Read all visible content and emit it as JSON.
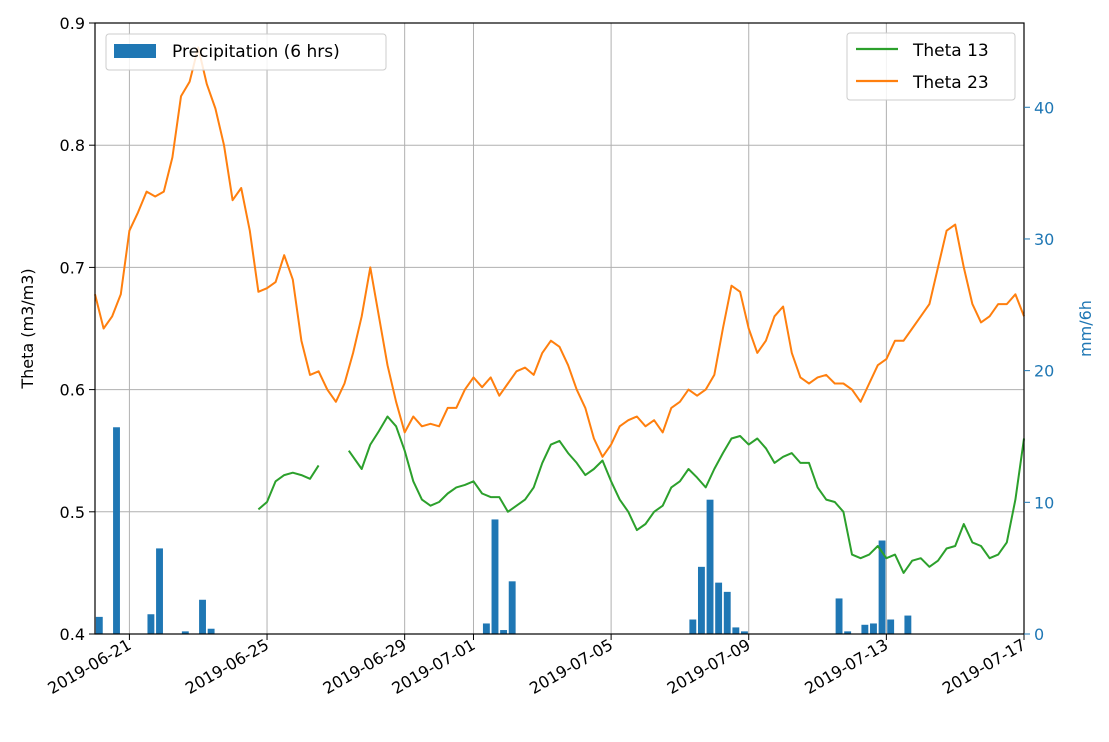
{
  "chart_data": {
    "type": "line",
    "xlabel": "",
    "ylabel": "Theta (m3/m3)",
    "y2label": "mm/6h",
    "xlim": [
      "2019-06-20",
      "2019-07-17"
    ],
    "ylim": [
      0.4,
      0.9
    ],
    "y2lim": [
      0,
      46.4
    ],
    "grid": true,
    "x_ticks": [
      "2019-06-21",
      "2019-06-25",
      "2019-06-29",
      "2019-07-01",
      "2019-07-05",
      "2019-07-09",
      "2019-07-13",
      "2019-07-17"
    ],
    "y_ticks": [
      "0.4",
      "0.5",
      "0.6",
      "0.7",
      "0.8",
      "0.9"
    ],
    "y2_ticks": [
      "0",
      "10",
      "20",
      "30",
      "40"
    ],
    "legend_left": {
      "placement": "upper-left",
      "entries": [
        "Precipitation (6 hrs)"
      ]
    },
    "legend_right": {
      "placement": "upper-right",
      "entries": [
        "Theta 13",
        "Theta 23"
      ]
    },
    "colors": {
      "precip": "#1f77b4",
      "theta13": "#2ca02c",
      "theta23": "#ff7f0e",
      "axis2": "#1f77b4"
    },
    "precipitation": [
      {
        "date": "2019-06-20T03:00",
        "value": 1.3
      },
      {
        "date": "2019-06-20T15:00",
        "value": 15.7
      },
      {
        "date": "2019-06-21T15:00",
        "value": 1.5
      },
      {
        "date": "2019-06-21T21:00",
        "value": 6.5
      },
      {
        "date": "2019-06-22T15:00",
        "value": 0.2
      },
      {
        "date": "2019-06-23T03:00",
        "value": 2.6
      },
      {
        "date": "2019-06-23T09:00",
        "value": 0.4
      },
      {
        "date": "2019-07-01T09:00",
        "value": 0.8
      },
      {
        "date": "2019-07-01T15:00",
        "value": 8.7
      },
      {
        "date": "2019-07-01T21:00",
        "value": 0.3
      },
      {
        "date": "2019-07-02T03:00",
        "value": 4.0
      },
      {
        "date": "2019-07-07T09:00",
        "value": 1.1
      },
      {
        "date": "2019-07-07T15:00",
        "value": 5.1
      },
      {
        "date": "2019-07-07T21:00",
        "value": 10.2
      },
      {
        "date": "2019-07-08T03:00",
        "value": 3.9
      },
      {
        "date": "2019-07-08T09:00",
        "value": 3.2
      },
      {
        "date": "2019-07-08T15:00",
        "value": 0.5
      },
      {
        "date": "2019-07-08T21:00",
        "value": 0.2
      },
      {
        "date": "2019-07-11T15:00",
        "value": 2.7
      },
      {
        "date": "2019-07-11T21:00",
        "value": 0.2
      },
      {
        "date": "2019-07-12T09:00",
        "value": 0.7
      },
      {
        "date": "2019-07-12T15:00",
        "value": 0.8
      },
      {
        "date": "2019-07-12T21:00",
        "value": 7.1
      },
      {
        "date": "2019-07-13T03:00",
        "value": 1.1
      },
      {
        "date": "2019-07-13T15:00",
        "value": 1.4
      }
    ],
    "series": [
      {
        "name": "Theta 23",
        "points": [
          [
            "2019-06-20T00:00",
            0.678
          ],
          [
            "2019-06-20T06:00",
            0.65
          ],
          [
            "2019-06-20T12:00",
            0.66
          ],
          [
            "2019-06-20T18:00",
            0.678
          ],
          [
            "2019-06-21T00:00",
            0.73
          ],
          [
            "2019-06-21T06:00",
            0.745
          ],
          [
            "2019-06-21T12:00",
            0.762
          ],
          [
            "2019-06-21T18:00",
            0.758
          ],
          [
            "2019-06-22T00:00",
            0.762
          ],
          [
            "2019-06-22T06:00",
            0.79
          ],
          [
            "2019-06-22T12:00",
            0.84
          ],
          [
            "2019-06-22T18:00",
            0.852
          ],
          [
            "2019-06-23T00:00",
            0.88
          ],
          [
            "2019-06-23T06:00",
            0.85
          ],
          [
            "2019-06-23T12:00",
            0.83
          ],
          [
            "2019-06-23T18:00",
            0.8
          ],
          [
            "2019-06-24T00:00",
            0.755
          ],
          [
            "2019-06-24T06:00",
            0.765
          ],
          [
            "2019-06-24T12:00",
            0.73
          ],
          [
            "2019-06-24T18:00",
            0.68
          ],
          [
            "2019-06-25T00:00",
            0.683
          ],
          [
            "2019-06-25T06:00",
            0.688
          ],
          [
            "2019-06-25T12:00",
            0.71
          ],
          [
            "2019-06-25T18:00",
            0.69
          ],
          [
            "2019-06-26T00:00",
            0.64
          ],
          [
            "2019-06-26T06:00",
            0.612
          ],
          [
            "2019-06-26T12:00",
            0.615
          ],
          [
            "2019-06-26T18:00",
            0.6
          ],
          [
            "2019-06-27T00:00",
            0.59
          ],
          [
            "2019-06-27T06:00",
            0.605
          ],
          [
            "2019-06-27T12:00",
            0.63
          ],
          [
            "2019-06-27T18:00",
            0.66
          ],
          [
            "2019-06-28T00:00",
            0.7
          ],
          [
            "2019-06-28T06:00",
            0.66
          ],
          [
            "2019-06-28T12:00",
            0.62
          ],
          [
            "2019-06-28T18:00",
            0.59
          ],
          [
            "2019-06-29T00:00",
            0.565
          ],
          [
            "2019-06-29T06:00",
            0.578
          ],
          [
            "2019-06-29T12:00",
            0.57
          ],
          [
            "2019-06-29T18:00",
            0.572
          ],
          [
            "2019-06-30T00:00",
            0.57
          ],
          [
            "2019-06-30T06:00",
            0.585
          ],
          [
            "2019-06-30T12:00",
            0.585
          ],
          [
            "2019-06-30T18:00",
            0.6
          ],
          [
            "2019-07-01T00:00",
            0.61
          ],
          [
            "2019-07-01T06:00",
            0.602
          ],
          [
            "2019-07-01T12:00",
            0.61
          ],
          [
            "2019-07-01T18:00",
            0.595
          ],
          [
            "2019-07-02T00:00",
            0.605
          ],
          [
            "2019-07-02T06:00",
            0.615
          ],
          [
            "2019-07-02T12:00",
            0.618
          ],
          [
            "2019-07-02T18:00",
            0.612
          ],
          [
            "2019-07-03T00:00",
            0.63
          ],
          [
            "2019-07-03T06:00",
            0.64
          ],
          [
            "2019-07-03T12:00",
            0.635
          ],
          [
            "2019-07-03T18:00",
            0.62
          ],
          [
            "2019-07-04T00:00",
            0.6
          ],
          [
            "2019-07-04T06:00",
            0.585
          ],
          [
            "2019-07-04T12:00",
            0.56
          ],
          [
            "2019-07-04T18:00",
            0.545
          ],
          [
            "2019-07-05T00:00",
            0.555
          ],
          [
            "2019-07-05T06:00",
            0.57
          ],
          [
            "2019-07-05T12:00",
            0.575
          ],
          [
            "2019-07-05T18:00",
            0.578
          ],
          [
            "2019-07-06T00:00",
            0.57
          ],
          [
            "2019-07-06T06:00",
            0.575
          ],
          [
            "2019-07-06T12:00",
            0.565
          ],
          [
            "2019-07-06T18:00",
            0.585
          ],
          [
            "2019-07-07T00:00",
            0.59
          ],
          [
            "2019-07-07T06:00",
            0.6
          ],
          [
            "2019-07-07T12:00",
            0.595
          ],
          [
            "2019-07-07T18:00",
            0.6
          ],
          [
            "2019-07-08T00:00",
            0.612
          ],
          [
            "2019-07-08T06:00",
            0.65
          ],
          [
            "2019-07-08T12:00",
            0.685
          ],
          [
            "2019-07-08T18:00",
            0.68
          ],
          [
            "2019-07-09T00:00",
            0.65
          ],
          [
            "2019-07-09T06:00",
            0.63
          ],
          [
            "2019-07-09T12:00",
            0.64
          ],
          [
            "2019-07-09T18:00",
            0.66
          ],
          [
            "2019-07-10T00:00",
            0.668
          ],
          [
            "2019-07-10T06:00",
            0.63
          ],
          [
            "2019-07-10T12:00",
            0.61
          ],
          [
            "2019-07-10T18:00",
            0.605
          ],
          [
            "2019-07-11T00:00",
            0.61
          ],
          [
            "2019-07-11T06:00",
            0.612
          ],
          [
            "2019-07-11T12:00",
            0.605
          ],
          [
            "2019-07-11T18:00",
            0.605
          ],
          [
            "2019-07-12T00:00",
            0.6
          ],
          [
            "2019-07-12T06:00",
            0.59
          ],
          [
            "2019-07-12T12:00",
            0.605
          ],
          [
            "2019-07-12T18:00",
            0.62
          ],
          [
            "2019-07-13T00:00",
            0.625
          ],
          [
            "2019-07-13T06:00",
            0.64
          ],
          [
            "2019-07-13T12:00",
            0.64
          ],
          [
            "2019-07-13T18:00",
            0.65
          ],
          [
            "2019-07-14T00:00",
            0.66
          ],
          [
            "2019-07-14T06:00",
            0.67
          ],
          [
            "2019-07-14T12:00",
            0.7
          ],
          [
            "2019-07-14T18:00",
            0.73
          ],
          [
            "2019-07-15T00:00",
            0.735
          ],
          [
            "2019-07-15T06:00",
            0.7
          ],
          [
            "2019-07-15T12:00",
            0.67
          ],
          [
            "2019-07-15T18:00",
            0.655
          ],
          [
            "2019-07-16T00:00",
            0.66
          ],
          [
            "2019-07-16T06:00",
            0.67
          ],
          [
            "2019-07-16T12:00",
            0.67
          ],
          [
            "2019-07-16T18:00",
            0.678
          ],
          [
            "2019-07-17T00:00",
            0.66
          ]
        ]
      },
      {
        "name": "Theta 13",
        "segments": [
          [
            [
              "2019-06-24T18:00",
              0.502
            ],
            [
              "2019-06-25T00:00",
              0.508
            ],
            [
              "2019-06-25T06:00",
              0.525
            ],
            [
              "2019-06-25T12:00",
              0.53
            ],
            [
              "2019-06-25T18:00",
              0.532
            ],
            [
              "2019-06-26T00:00",
              0.53
            ],
            [
              "2019-06-26T06:00",
              0.527
            ],
            [
              "2019-06-26T12:00",
              0.538
            ]
          ],
          [
            [
              "2019-06-27T09:00",
              0.55
            ],
            [
              "2019-06-27T18:00",
              0.535
            ],
            [
              "2019-06-28T00:00",
              0.555
            ],
            [
              "2019-06-28T06:00",
              0.566
            ],
            [
              "2019-06-28T12:00",
              0.578
            ],
            [
              "2019-06-28T18:00",
              0.57
            ],
            [
              "2019-06-29T00:00",
              0.55
            ],
            [
              "2019-06-29T06:00",
              0.525
            ],
            [
              "2019-06-29T12:00",
              0.51
            ],
            [
              "2019-06-29T18:00",
              0.505
            ],
            [
              "2019-06-30T00:00",
              0.508
            ],
            [
              "2019-06-30T06:00",
              0.515
            ],
            [
              "2019-06-30T12:00",
              0.52
            ],
            [
              "2019-06-30T18:00",
              0.522
            ],
            [
              "2019-07-01T00:00",
              0.525
            ],
            [
              "2019-07-01T06:00",
              0.515
            ],
            [
              "2019-07-01T12:00",
              0.512
            ],
            [
              "2019-07-01T18:00",
              0.512
            ],
            [
              "2019-07-02T00:00",
              0.5
            ],
            [
              "2019-07-02T06:00",
              0.505
            ],
            [
              "2019-07-02T12:00",
              0.51
            ],
            [
              "2019-07-02T18:00",
              0.52
            ],
            [
              "2019-07-03T00:00",
              0.54
            ],
            [
              "2019-07-03T06:00",
              0.555
            ],
            [
              "2019-07-03T12:00",
              0.558
            ],
            [
              "2019-07-03T18:00",
              0.548
            ],
            [
              "2019-07-04T00:00",
              0.54
            ],
            [
              "2019-07-04T06:00",
              0.53
            ],
            [
              "2019-07-04T12:00",
              0.535
            ],
            [
              "2019-07-04T18:00",
              0.542
            ],
            [
              "2019-07-05T00:00",
              0.525
            ],
            [
              "2019-07-05T06:00",
              0.51
            ],
            [
              "2019-07-05T12:00",
              0.5
            ],
            [
              "2019-07-05T18:00",
              0.485
            ],
            [
              "2019-07-06T00:00",
              0.49
            ],
            [
              "2019-07-06T06:00",
              0.5
            ],
            [
              "2019-07-06T12:00",
              0.505
            ],
            [
              "2019-07-06T18:00",
              0.52
            ],
            [
              "2019-07-07T00:00",
              0.525
            ],
            [
              "2019-07-07T06:00",
              0.535
            ],
            [
              "2019-07-07T12:00",
              0.528
            ],
            [
              "2019-07-07T18:00",
              0.52
            ],
            [
              "2019-07-08T00:00",
              0.535
            ],
            [
              "2019-07-08T06:00",
              0.548
            ],
            [
              "2019-07-08T12:00",
              0.56
            ],
            [
              "2019-07-08T18:00",
              0.562
            ],
            [
              "2019-07-09T00:00",
              0.555
            ],
            [
              "2019-07-09T06:00",
              0.56
            ],
            [
              "2019-07-09T12:00",
              0.552
            ],
            [
              "2019-07-09T18:00",
              0.54
            ],
            [
              "2019-07-10T00:00",
              0.545
            ],
            [
              "2019-07-10T06:00",
              0.548
            ],
            [
              "2019-07-10T12:00",
              0.54
            ],
            [
              "2019-07-10T18:00",
              0.54
            ],
            [
              "2019-07-11T00:00",
              0.52
            ],
            [
              "2019-07-11T06:00",
              0.51
            ],
            [
              "2019-07-11T12:00",
              0.508
            ],
            [
              "2019-07-11T18:00",
              0.5
            ],
            [
              "2019-07-12T00:00",
              0.465
            ],
            [
              "2019-07-12T06:00",
              0.462
            ],
            [
              "2019-07-12T12:00",
              0.465
            ],
            [
              "2019-07-12T18:00",
              0.472
            ],
            [
              "2019-07-13T00:00",
              0.462
            ],
            [
              "2019-07-13T06:00",
              0.465
            ],
            [
              "2019-07-13T12:00",
              0.45
            ],
            [
              "2019-07-13T18:00",
              0.46
            ],
            [
              "2019-07-14T00:00",
              0.462
            ],
            [
              "2019-07-14T06:00",
              0.455
            ],
            [
              "2019-07-14T12:00",
              0.46
            ],
            [
              "2019-07-14T18:00",
              0.47
            ],
            [
              "2019-07-15T00:00",
              0.472
            ],
            [
              "2019-07-15T06:00",
              0.49
            ],
            [
              "2019-07-15T12:00",
              0.475
            ],
            [
              "2019-07-15T18:00",
              0.472
            ],
            [
              "2019-07-16T00:00",
              0.462
            ],
            [
              "2019-07-16T06:00",
              0.465
            ],
            [
              "2019-07-16T12:00",
              0.475
            ],
            [
              "2019-07-16T18:00",
              0.51
            ],
            [
              "2019-07-17T00:00",
              0.56
            ]
          ]
        ]
      }
    ]
  }
}
